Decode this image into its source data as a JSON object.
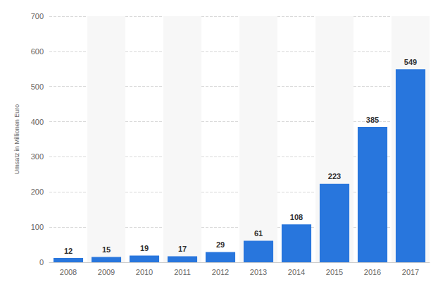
{
  "chart_data": {
    "type": "bar",
    "ylabel": "Umsatz in Millionen Euro",
    "categories": [
      "2008",
      "2009",
      "2010",
      "2011",
      "2012",
      "2013",
      "2014",
      "2015",
      "2016",
      "2017"
    ],
    "values": [
      12,
      15,
      19,
      17,
      29,
      61,
      108,
      223,
      385,
      549
    ],
    "color": "#2876dd",
    "ylim": [
      0,
      700
    ],
    "yticks": [
      0,
      100,
      200,
      300,
      400,
      500,
      600,
      700
    ],
    "grid": true,
    "data_labels": true
  }
}
